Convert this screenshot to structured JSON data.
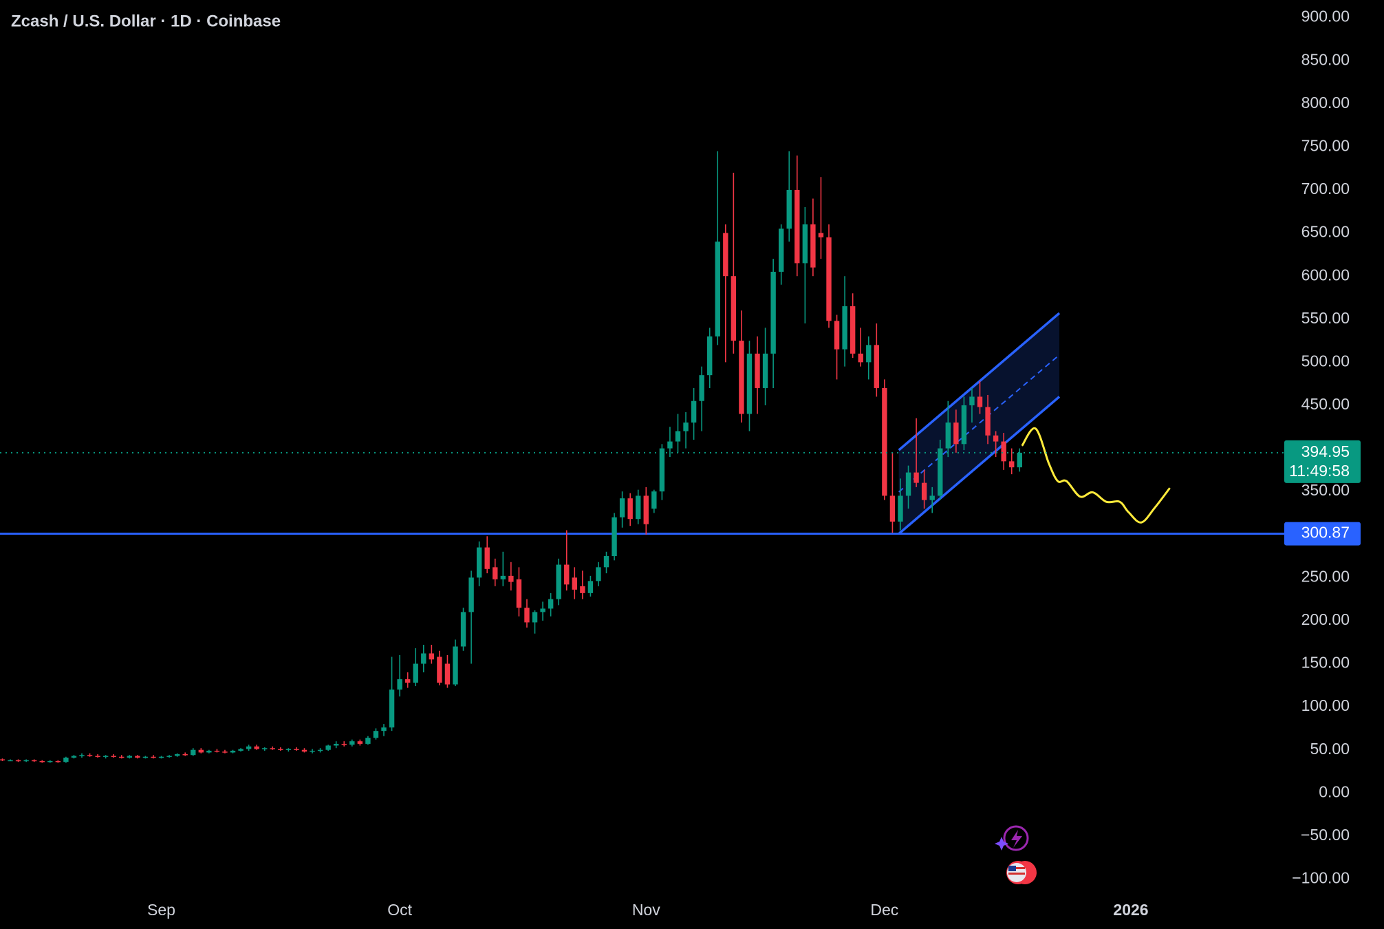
{
  "chart_data": {
    "type": "candlestick",
    "title": "Zcash / U.S. Dollar · 1D · Coinbase",
    "up_color": "#089981",
    "down_color": "#f23645",
    "xlim": [
      -0.3,
      161.3
    ],
    "ylim": [
      -114.8,
      920.5
    ],
    "xticks": [
      {
        "value": 20,
        "label": "Sep"
      },
      {
        "value": 50,
        "label": "Oct"
      },
      {
        "value": 81,
        "label": "Nov"
      },
      {
        "value": 111,
        "label": "Dec"
      },
      {
        "value": 142,
        "label": "2026"
      }
    ],
    "yticks": [
      {
        "value": 900,
        "label": "900.00"
      },
      {
        "value": 850,
        "label": "850.00"
      },
      {
        "value": 800,
        "label": "800.00"
      },
      {
        "value": 750,
        "label": "750.00"
      },
      {
        "value": 700,
        "label": "700.00"
      },
      {
        "value": 650,
        "label": "650.00"
      },
      {
        "value": 600,
        "label": "600.00"
      },
      {
        "value": 550,
        "label": "550.00"
      },
      {
        "value": 500,
        "label": "500.00"
      },
      {
        "value": 450,
        "label": "450.00"
      },
      {
        "value": 350,
        "label": "350.00"
      },
      {
        "value": 250,
        "label": "250.00"
      },
      {
        "value": 200,
        "label": "200.00"
      },
      {
        "value": 150,
        "label": "150.00"
      },
      {
        "value": 100,
        "label": "100.00"
      },
      {
        "value": 50,
        "label": "50.00"
      },
      {
        "value": 0,
        "label": "0.00"
      },
      {
        "value": -50,
        "label": "−50.00"
      },
      {
        "value": -100,
        "label": "−100.00"
      }
    ],
    "candles": [
      [
        39,
        40,
        37,
        38
      ],
      [
        38,
        39,
        37,
        38
      ],
      [
        38,
        39,
        36,
        37
      ],
      [
        37,
        39,
        36,
        38
      ],
      [
        38,
        39,
        36,
        37
      ],
      [
        37,
        38,
        35,
        36
      ],
      [
        36,
        38,
        35,
        37
      ],
      [
        37,
        38,
        35,
        36
      ],
      [
        36,
        42,
        35,
        41
      ],
      [
        41,
        44,
        40,
        43
      ],
      [
        43,
        46,
        41,
        44
      ],
      [
        44,
        46,
        42,
        43
      ],
      [
        43,
        45,
        41,
        42
      ],
      [
        42,
        44,
        40,
        43
      ],
      [
        43,
        45,
        41,
        42
      ],
      [
        42,
        44,
        40,
        41
      ],
      [
        41,
        44,
        40,
        43
      ],
      [
        43,
        44,
        40,
        41
      ],
      [
        41,
        43,
        40,
        42
      ],
      [
        42,
        44,
        40,
        41
      ],
      [
        41,
        43,
        40,
        42
      ],
      [
        42,
        44,
        41,
        43
      ],
      [
        43,
        46,
        42,
        45
      ],
      [
        45,
        47,
        43,
        44
      ],
      [
        44,
        52,
        43,
        50
      ],
      [
        50,
        52,
        46,
        47
      ],
      [
        47,
        50,
        46,
        49
      ],
      [
        49,
        51,
        47,
        48
      ],
      [
        48,
        50,
        46,
        47
      ],
      [
        47,
        50,
        46,
        49
      ],
      [
        49,
        52,
        48,
        51
      ],
      [
        51,
        56,
        49,
        54
      ],
      [
        54,
        56,
        50,
        51
      ],
      [
        51,
        53,
        49,
        52
      ],
      [
        52,
        54,
        50,
        51
      ],
      [
        51,
        53,
        49,
        50
      ],
      [
        50,
        52,
        48,
        51
      ],
      [
        51,
        53,
        49,
        50
      ],
      [
        50,
        52,
        47,
        48
      ],
      [
        48,
        51,
        46,
        49
      ],
      [
        49,
        52,
        47,
        50
      ],
      [
        50,
        56,
        49,
        55
      ],
      [
        55,
        60,
        52,
        57
      ],
      [
        57,
        60,
        54,
        56
      ],
      [
        56,
        62,
        54,
        60
      ],
      [
        60,
        62,
        55,
        57
      ],
      [
        57,
        66,
        56,
        64
      ],
      [
        64,
        75,
        62,
        72
      ],
      [
        72,
        80,
        66,
        76
      ],
      [
        76,
        158,
        72,
        120
      ],
      [
        120,
        160,
        112,
        132
      ],
      [
        132,
        140,
        122,
        128
      ],
      [
        128,
        168,
        124,
        150
      ],
      [
        150,
        172,
        140,
        162
      ],
      [
        162,
        172,
        150,
        155
      ],
      [
        158,
        165,
        125,
        128
      ],
      [
        150,
        160,
        122,
        126
      ],
      [
        126,
        178,
        124,
        170
      ],
      [
        170,
        215,
        165,
        210
      ],
      [
        210,
        258,
        150,
        250
      ],
      [
        250,
        292,
        240,
        285
      ],
      [
        285,
        298,
        255,
        260
      ],
      [
        262,
        272,
        240,
        248
      ],
      [
        248,
        280,
        240,
        252
      ],
      [
        252,
        268,
        235,
        245
      ],
      [
        248,
        262,
        205,
        215
      ],
      [
        215,
        225,
        192,
        198
      ],
      [
        198,
        212,
        185,
        210
      ],
      [
        210,
        222,
        200,
        214
      ],
      [
        214,
        232,
        205,
        225
      ],
      [
        225,
        272,
        218,
        265
      ],
      [
        265,
        305,
        235,
        242
      ],
      [
        250,
        262,
        225,
        236
      ],
      [
        240,
        258,
        225,
        232
      ],
      [
        232,
        252,
        228,
        246
      ],
      [
        246,
        268,
        240,
        262
      ],
      [
        262,
        280,
        255,
        275
      ],
      [
        275,
        325,
        270,
        320
      ],
      [
        320,
        350,
        308,
        342
      ],
      [
        342,
        348,
        310,
        318
      ],
      [
        318,
        352,
        312,
        345
      ],
      [
        345,
        355,
        300,
        312
      ],
      [
        330,
        352,
        325,
        350
      ],
      [
        350,
        405,
        340,
        400
      ],
      [
        400,
        425,
        390,
        408
      ],
      [
        408,
        440,
        395,
        420
      ],
      [
        420,
        442,
        400,
        430
      ],
      [
        430,
        470,
        410,
        455
      ],
      [
        455,
        495,
        420,
        485
      ],
      [
        485,
        540,
        470,
        530
      ],
      [
        530,
        745,
        520,
        640
      ],
      [
        650,
        660,
        500,
        600
      ],
      [
        600,
        720,
        510,
        525
      ],
      [
        525,
        560,
        430,
        440
      ],
      [
        440,
        525,
        420,
        510
      ],
      [
        510,
        530,
        440,
        470
      ],
      [
        470,
        540,
        450,
        510
      ],
      [
        510,
        620,
        470,
        605
      ],
      [
        605,
        660,
        590,
        655
      ],
      [
        655,
        745,
        640,
        700
      ],
      [
        700,
        740,
        600,
        615
      ],
      [
        615,
        680,
        545,
        660
      ],
      [
        660,
        690,
        600,
        610
      ],
      [
        650,
        715,
        620,
        645
      ],
      [
        645,
        660,
        540,
        548
      ],
      [
        548,
        555,
        480,
        515
      ],
      [
        515,
        600,
        495,
        565
      ],
      [
        565,
        580,
        505,
        510
      ],
      [
        510,
        540,
        495,
        500
      ],
      [
        500,
        530,
        480,
        520
      ],
      [
        520,
        545,
        460,
        470
      ],
      [
        470,
        480,
        340,
        345
      ],
      [
        345,
        395,
        302,
        315
      ],
      [
        315,
        365,
        305,
        345
      ],
      [
        345,
        380,
        330,
        372
      ],
      [
        372,
        435,
        355,
        360
      ],
      [
        360,
        375,
        330,
        340
      ],
      [
        340,
        355,
        325,
        345
      ],
      [
        345,
        410,
        340,
        400
      ],
      [
        400,
        455,
        390,
        430
      ],
      [
        430,
        445,
        395,
        405
      ],
      [
        405,
        460,
        398,
        450
      ],
      [
        450,
        470,
        430,
        460
      ],
      [
        460,
        478,
        440,
        448
      ],
      [
        448,
        462,
        405,
        415
      ],
      [
        415,
        420,
        390,
        408
      ],
      [
        408,
        418,
        375,
        385
      ],
      [
        385,
        400,
        370,
        378
      ],
      [
        378,
        400,
        373,
        394.95
      ]
    ],
    "countdown": "11:49:58",
    "support_level": 300.87,
    "channel": {
      "upper": [
        [
          112.8,
          398
        ],
        [
          133,
          557
        ]
      ],
      "lower": [
        [
          112.8,
          300.87
        ],
        [
          133,
          460
        ]
      ]
    },
    "projection": {
      "color": "#ffeb3b",
      "x": [
        128.3,
        130,
        131.7,
        132.8,
        133.9,
        135.6,
        137.2,
        138.9,
        140.6,
        141.7,
        143.3,
        145,
        146.9
      ],
      "y": [
        403,
        423,
        382,
        362,
        362,
        344,
        349,
        338,
        338,
        326,
        314,
        331,
        354
      ]
    }
  }
}
